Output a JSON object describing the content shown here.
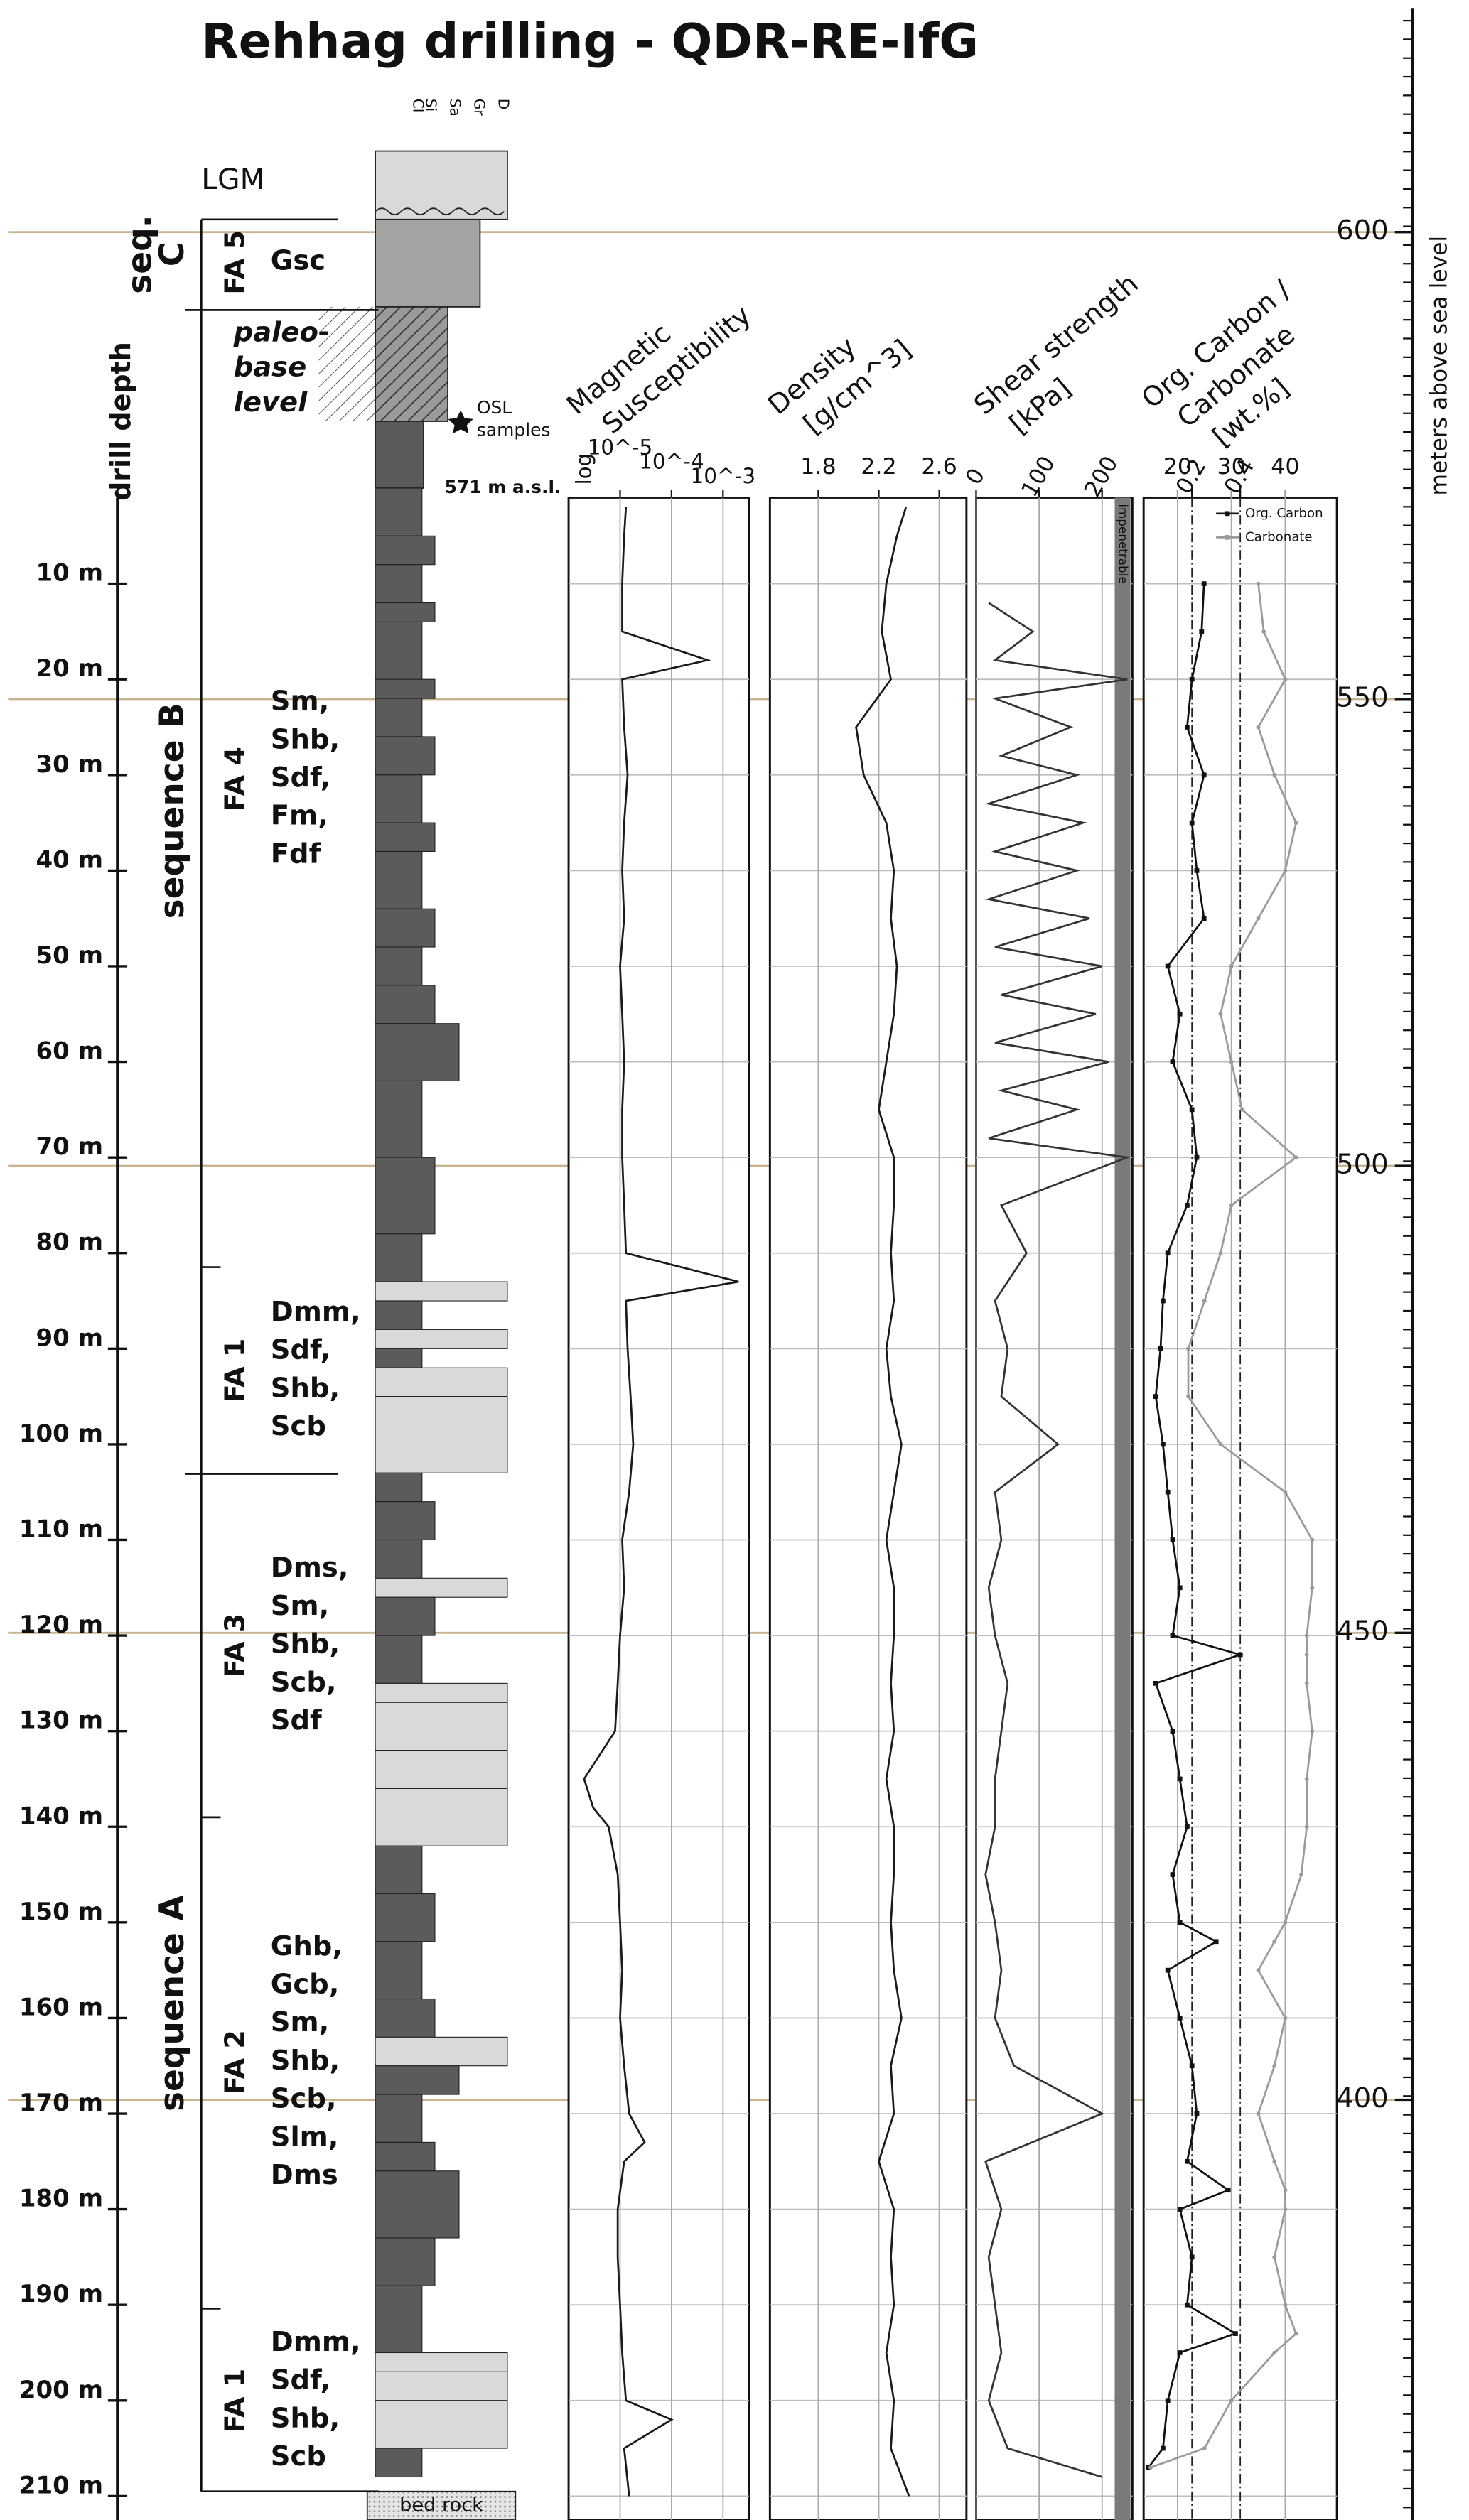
{
  "title": "Rehhag drilling - QDR-RE-IfG",
  "chart_data": [
    {
      "type": "depth_axis",
      "axis_label": "drill depth",
      "ylim": [
        0,
        212
      ],
      "yticks": [
        {
          "value": 10,
          "label": "10 m"
        },
        {
          "value": 20,
          "label": "20 m"
        },
        {
          "value": 30,
          "label": "30 m"
        },
        {
          "value": 40,
          "label": "40 m"
        },
        {
          "value": 50,
          "label": "50 m"
        },
        {
          "value": 60,
          "label": "60 m"
        },
        {
          "value": 70,
          "label": "70 m"
        },
        {
          "value": 80,
          "label": "80 m"
        },
        {
          "value": 90,
          "label": "90 m"
        },
        {
          "value": 100,
          "label": "100 m"
        },
        {
          "value": 110,
          "label": "110 m"
        },
        {
          "value": 120,
          "label": "120 m"
        },
        {
          "value": 130,
          "label": "130 m"
        },
        {
          "value": 140,
          "label": "140 m"
        },
        {
          "value": 150,
          "label": "150 m"
        },
        {
          "value": 160,
          "label": "160 m"
        },
        {
          "value": 170,
          "label": "170 m"
        },
        {
          "value": 180,
          "label": "180 m"
        },
        {
          "value": 190,
          "label": "190 m"
        },
        {
          "value": 200,
          "label": "200 m"
        },
        {
          "value": 210,
          "label": "210 m"
        }
      ],
      "grid": true,
      "grid_color": "#bdbdbd"
    },
    {
      "type": "elevation_axis",
      "axis_label": "meters above sea level",
      "ylim": [
        355,
        624
      ],
      "yticks": [
        400,
        450,
        500,
        550,
        600
      ],
      "grid": true,
      "grid_color": "#c9b48f"
    },
    {
      "type": "lithology",
      "grain_labels": [
        "Cl",
        "Si",
        "Sa",
        "Gr",
        "D"
      ],
      "colors": {
        "fine": "#5b5b5b",
        "coarse": "#d9d9d9"
      },
      "beds": [
        [
          0,
          5,
          0
        ],
        [
          5,
          8,
          1
        ],
        [
          8,
          12,
          0
        ],
        [
          12,
          14,
          1
        ],
        [
          14,
          20,
          0
        ],
        [
          20,
          22,
          1
        ],
        [
          22,
          26,
          0
        ],
        [
          26,
          30,
          1
        ],
        [
          30,
          35,
          0
        ],
        [
          35,
          38,
          1
        ],
        [
          38,
          44,
          0
        ],
        [
          44,
          48,
          1
        ],
        [
          48,
          52,
          0
        ],
        [
          52,
          56,
          1
        ],
        [
          56,
          62,
          2
        ],
        [
          62,
          70,
          0
        ],
        [
          70,
          78,
          1
        ],
        [
          78,
          83,
          0
        ],
        [
          83,
          85,
          4
        ],
        [
          85,
          88,
          0
        ],
        [
          88,
          90,
          4
        ],
        [
          90,
          92,
          0
        ],
        [
          92,
          95,
          4
        ],
        [
          95,
          103,
          4
        ],
        [
          103,
          106,
          0
        ],
        [
          106,
          110,
          1
        ],
        [
          110,
          114,
          0
        ],
        [
          114,
          116,
          4
        ],
        [
          116,
          120,
          1
        ],
        [
          120,
          125,
          0
        ],
        [
          125,
          127,
          4
        ],
        [
          127,
          132,
          4
        ],
        [
          132,
          136,
          4
        ],
        [
          136,
          142,
          4
        ],
        [
          142,
          147,
          0
        ],
        [
          147,
          152,
          1
        ],
        [
          152,
          158,
          0
        ],
        [
          158,
          162,
          1
        ],
        [
          162,
          165,
          4
        ],
        [
          165,
          168,
          2
        ],
        [
          168,
          173,
          0
        ],
        [
          173,
          176,
          1
        ],
        [
          176,
          183,
          2
        ],
        [
          183,
          188,
          1
        ],
        [
          188,
          195,
          0
        ],
        [
          195,
          197,
          4
        ],
        [
          197,
          200,
          4
        ],
        [
          200,
          205,
          4
        ],
        [
          205,
          208,
          0
        ]
      ],
      "top_label": "LGM",
      "paleo_lines": [
        "paleo-",
        "base",
        "level"
      ],
      "osl_lines": [
        "OSL",
        "samples"
      ],
      "top_elevation": "571 m a.s.l.",
      "base_label": "bed rock",
      "sequences": [
        [
          "seq.",
          "C"
        ],
        [
          "sequence B"
        ],
        [
          "sequence A"
        ]
      ],
      "facies": [
        {
          "name": "FA 5",
          "codes": [
            "Gsc"
          ]
        },
        {
          "name": "FA 4",
          "codes": [
            "Sm,",
            "Shb,",
            "Sdf,",
            "Fm,",
            "Fdf"
          ]
        },
        {
          "name": "FA 1",
          "codes": [
            "Dmm,",
            "Sdf,",
            "Shb,",
            "Scb"
          ]
        },
        {
          "name": "FA 3",
          "codes": [
            "Dms,",
            "Sm,",
            "Shb,",
            "Scb,",
            "Sdf"
          ]
        },
        {
          "name": "FA 2",
          "codes": [
            "Ghb,",
            "Gcb,",
            "Sm,",
            "Shb,",
            "Scb,",
            "Slm,",
            "Dms"
          ]
        },
        {
          "name": "FA 1",
          "codes": [
            "Dmm,",
            "Sdf,",
            "Shb,",
            "Scb"
          ]
        }
      ]
    },
    {
      "type": "line",
      "title_lines": [
        "Magnetic",
        "Susceptibility"
      ],
      "xscale": "log",
      "x_scale_label": "log",
      "xlim": [
        1e-06,
        0.0032
      ],
      "xticks": [
        {
          "value": 1e-05,
          "label": "10^-5"
        },
        {
          "value": 0.0001,
          "label": "10^-4"
        },
        {
          "value": 0.001,
          "label": "10^-3"
        }
      ],
      "depth": [
        2,
        5,
        10,
        15,
        18,
        20,
        25,
        30,
        35,
        40,
        45,
        50,
        55,
        60,
        65,
        70,
        75,
        80,
        83,
        85,
        90,
        95,
        100,
        105,
        110,
        115,
        120,
        125,
        130,
        135,
        138,
        140,
        145,
        150,
        155,
        160,
        165,
        170,
        173,
        175,
        180,
        185,
        190,
        195,
        200,
        202,
        205,
        210
      ],
      "series": [
        {
          "color": "#1a1a1a",
          "values": [
            1.3e-05,
            1.2e-05,
            1.1e-05,
            1.1e-05,
            0.0005,
            1.1e-05,
            1.2e-05,
            1.4e-05,
            1.2e-05,
            1.1e-05,
            1.2e-05,
            1e-05,
            1.1e-05,
            1.2e-05,
            1.1e-05,
            1.1e-05,
            1.2e-05,
            1.3e-05,
            0.002,
            1.3e-05,
            1.4e-05,
            1.6e-05,
            1.8e-05,
            1.5e-05,
            1.1e-05,
            1.2e-05,
            1e-05,
            9e-06,
            8e-06,
            2e-06,
            3e-06,
            6e-06,
            9e-06,
            1e-05,
            1.1e-05,
            1e-05,
            1.2e-05,
            1.5e-05,
            3e-05,
            1.2e-05,
            9e-06,
            9e-06,
            1e-05,
            1.1e-05,
            1.3e-05,
            0.0001,
            1.2e-05,
            1.5e-05
          ]
        }
      ]
    },
    {
      "type": "line",
      "title_lines": [
        "Density",
        "[g/cm^3]"
      ],
      "xlim": [
        1.48,
        2.78
      ],
      "xticks": [
        1.8,
        2.2,
        2.6
      ],
      "depth": [
        2,
        5,
        10,
        15,
        20,
        25,
        30,
        35,
        40,
        45,
        50,
        55,
        60,
        65,
        70,
        75,
        80,
        85,
        90,
        95,
        100,
        105,
        110,
        115,
        120,
        125,
        130,
        135,
        140,
        145,
        150,
        155,
        160,
        165,
        170,
        175,
        180,
        185,
        190,
        195,
        200,
        205,
        210
      ],
      "series": [
        {
          "color": "#1a1a1a",
          "values": [
            2.38,
            2.32,
            2.25,
            2.22,
            2.28,
            2.05,
            2.1,
            2.25,
            2.3,
            2.28,
            2.32,
            2.3,
            2.25,
            2.2,
            2.3,
            2.3,
            2.28,
            2.3,
            2.25,
            2.28,
            2.35,
            2.3,
            2.25,
            2.3,
            2.3,
            2.28,
            2.3,
            2.25,
            2.3,
            2.3,
            2.28,
            2.3,
            2.35,
            2.28,
            2.3,
            2.2,
            2.3,
            2.28,
            2.3,
            2.25,
            2.3,
            2.28,
            2.4
          ]
        }
      ]
    },
    {
      "type": "line",
      "title_lines": [
        "Shear strength",
        "[kPa]"
      ],
      "xlim": [
        0,
        248
      ],
      "xticks": [
        0,
        100,
        200
      ],
      "band": {
        "label": "impenetrable",
        "range": [
          220,
          245
        ],
        "color": "#7a7a7a"
      },
      "depth": [
        12,
        15,
        18,
        20,
        22,
        25,
        28,
        30,
        33,
        35,
        38,
        40,
        43,
        45,
        48,
        50,
        53,
        55,
        58,
        60,
        63,
        65,
        68,
        70,
        75,
        80,
        85,
        90,
        95,
        100,
        105,
        110,
        115,
        120,
        125,
        130,
        135,
        140,
        145,
        150,
        155,
        160,
        165,
        170,
        175,
        180,
        185,
        190,
        195,
        200,
        205,
        208
      ],
      "series": [
        {
          "color": "#333333",
          "values": [
            20,
            90,
            30,
            240,
            30,
            150,
            40,
            160,
            20,
            170,
            30,
            160,
            20,
            180,
            30,
            200,
            40,
            190,
            30,
            210,
            40,
            160,
            20,
            240,
            40,
            80,
            30,
            50,
            40,
            130,
            30,
            40,
            20,
            30,
            50,
            40,
            30,
            30,
            15,
            30,
            40,
            30,
            60,
            200,
            15,
            40,
            20,
            30,
            40,
            20,
            50,
            200
          ]
        }
      ]
    },
    {
      "type": "line",
      "title_lines": [
        "Org. Carbon /",
        "Carbonate",
        "[wt.%]"
      ],
      "legend": "top-right",
      "depth": [
        10,
        15,
        20,
        25,
        30,
        35,
        40,
        45,
        50,
        55,
        60,
        65,
        70,
        75,
        80,
        85,
        90,
        95,
        100,
        105,
        110,
        115,
        120,
        122,
        125,
        130,
        135,
        140,
        145,
        150,
        152,
        155,
        160,
        165,
        170,
        175,
        178,
        180,
        185,
        190,
        193,
        195,
        200,
        205,
        207
      ],
      "series": [
        {
          "name": "Org. Carbon",
          "color": "#111111",
          "marker": "square",
          "xlim": [
            0,
            0.8
          ],
          "xticks": [
            0.2,
            0.4
          ],
          "values": [
            0.25,
            0.24,
            0.2,
            0.18,
            0.25,
            0.2,
            0.22,
            0.25,
            0.1,
            0.15,
            0.12,
            0.2,
            0.22,
            0.18,
            0.1,
            0.08,
            0.07,
            0.05,
            0.08,
            0.1,
            0.12,
            0.15,
            0.12,
            0.4,
            0.05,
            0.12,
            0.15,
            0.18,
            0.12,
            0.15,
            0.3,
            0.1,
            0.15,
            0.2,
            0.22,
            0.18,
            0.35,
            0.15,
            0.2,
            0.18,
            0.38,
            0.15,
            0.1,
            0.08,
            0.02
          ]
        },
        {
          "name": "Carbonate",
          "color": "#9a9a9a",
          "marker": "dot",
          "xlim": [
            13.7,
            49.6
          ],
          "xticks": [
            20,
            30,
            40
          ],
          "values": [
            35,
            36,
            40,
            35,
            38,
            42,
            40,
            35,
            30,
            28,
            30,
            32,
            42,
            30,
            28,
            25,
            22,
            22,
            28,
            40,
            45,
            45,
            44,
            44,
            44,
            45,
            44,
            44,
            43,
            40,
            38,
            35,
            40,
            38,
            35,
            38,
            40,
            40,
            38,
            40,
            42,
            38,
            30,
            25,
            15
          ]
        }
      ]
    }
  ]
}
